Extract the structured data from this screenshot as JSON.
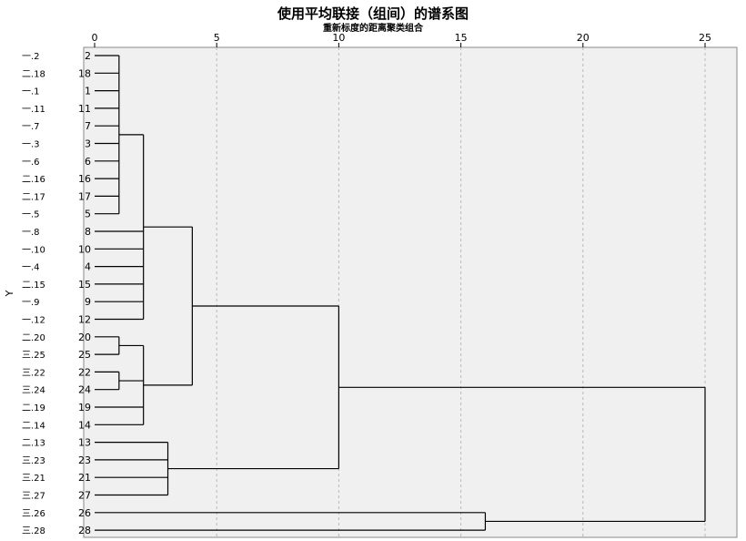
{
  "chart_data": {
    "type": "dendrogram",
    "title": "使用平均联接（组间）的谱系图",
    "subtitle": "重新标度的距离聚类组合",
    "ylabel": "Y",
    "xlim": [
      0,
      25
    ],
    "x_ticks": [
      "0",
      "5",
      "10",
      "15",
      "20",
      "25"
    ],
    "grid": "vertical dashed",
    "leaves": [
      {
        "label": "一.2",
        "id": "2"
      },
      {
        "label": "二.18",
        "id": "18"
      },
      {
        "label": "一.1",
        "id": "1"
      },
      {
        "label": "一.11",
        "id": "11"
      },
      {
        "label": "一.7",
        "id": "7"
      },
      {
        "label": "一.3",
        "id": "3"
      },
      {
        "label": "一.6",
        "id": "6"
      },
      {
        "label": "二.16",
        "id": "16"
      },
      {
        "label": "二.17",
        "id": "17"
      },
      {
        "label": "一.5",
        "id": "5"
      },
      {
        "label": "一.8",
        "id": "8"
      },
      {
        "label": "一.10",
        "id": "10"
      },
      {
        "label": "一.4",
        "id": "4"
      },
      {
        "label": "二.15",
        "id": "15"
      },
      {
        "label": "一.9",
        "id": "9"
      },
      {
        "label": "一.12",
        "id": "12"
      },
      {
        "label": "二.20",
        "id": "20"
      },
      {
        "label": "三.25",
        "id": "25"
      },
      {
        "label": "三.22",
        "id": "22"
      },
      {
        "label": "三.24",
        "id": "24"
      },
      {
        "label": "二.19",
        "id": "19"
      },
      {
        "label": "二.14",
        "id": "14"
      },
      {
        "label": "二.13",
        "id": "13"
      },
      {
        "label": "三.23",
        "id": "23"
      },
      {
        "label": "三.21",
        "id": "21"
      },
      {
        "label": "三.27",
        "id": "27"
      },
      {
        "label": "三.26",
        "id": "26"
      },
      {
        "label": "三.28",
        "id": "28"
      }
    ],
    "merges": [
      {
        "children": [
          "L0",
          "L1",
          "L2",
          "L3",
          "L4",
          "L5",
          "L6",
          "L7",
          "L8",
          "L9"
        ],
        "height": 1.0
      },
      {
        "children": [
          "L16",
          "L17"
        ],
        "height": 1.0
      },
      {
        "children": [
          "L18",
          "L19"
        ],
        "height": 1.0
      },
      {
        "children": [
          "L22",
          "L23",
          "L24",
          "L25"
        ],
        "height": 3.0
      },
      {
        "children": [
          "M0",
          "L10",
          "L11",
          "L12",
          "L13",
          "L14",
          "L15"
        ],
        "height": 2.0
      },
      {
        "children": [
          "M1",
          "M2",
          "L20",
          "L21"
        ],
        "height": 2.0
      },
      {
        "children": [
          "M4",
          "M5"
        ],
        "height": 4.0
      },
      {
        "children": [
          "M6",
          "M3"
        ],
        "height": 10.0
      },
      {
        "children": [
          "L26",
          "L27"
        ],
        "height": 16.0
      },
      {
        "children": [
          "M7",
          "M8"
        ],
        "height": 25.0
      }
    ]
  }
}
